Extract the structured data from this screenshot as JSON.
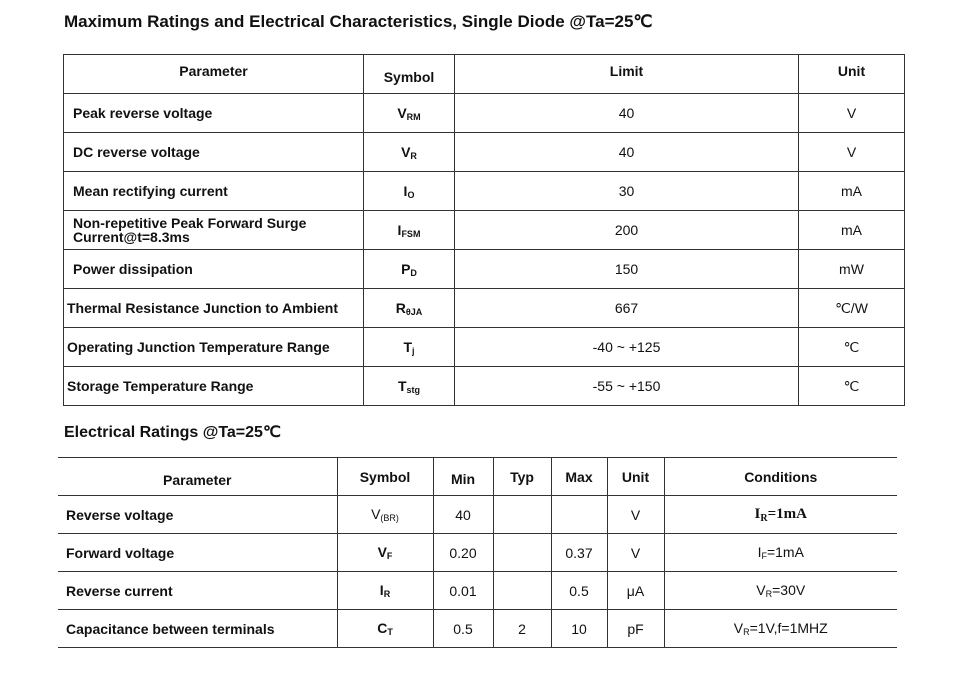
{
  "title_main": "Maximum Ratings and Electrical Characteristics, Single Diode @Ta=25℃",
  "max_table": {
    "headers": {
      "parameter": "Parameter",
      "symbol": "Symbol",
      "limit": "Limit",
      "unit": "Unit"
    },
    "rows": [
      {
        "parameter": "Peak reverse voltage",
        "symbol": "V",
        "symbol_sub": "RM",
        "limit": "40",
        "unit": "V"
      },
      {
        "parameter": "DC reverse voltage",
        "symbol": "V",
        "symbol_sub": "R",
        "limit": "40",
        "unit": "V"
      },
      {
        "parameter": "Mean rectifying current",
        "symbol": "I",
        "symbol_sub": "O",
        "limit": "30",
        "unit": "mA"
      },
      {
        "parameter": "Non-repetitive Peak Forward Surge",
        "parameter_line2": "Current@t=8.3ms",
        "symbol": "I",
        "symbol_sub": "FSM",
        "limit": "200",
        "unit": "mA"
      },
      {
        "parameter": "Power dissipation",
        "symbol": "P",
        "symbol_sub": "D",
        "limit": "150",
        "unit": "mW"
      },
      {
        "parameter": "Thermal Resistance Junction to Ambient",
        "symbol": "R",
        "symbol_sub": "θJA",
        "limit": "667",
        "unit": "℃/W"
      },
      {
        "parameter": "Operating Junction Temperature Range",
        "symbol": "T",
        "symbol_sub": "j",
        "limit": "-40 ~ +125",
        "unit": "℃"
      },
      {
        "parameter": "Storage Temperature Range",
        "symbol": "T",
        "symbol_sub": "stg",
        "limit": "-55 ~ +150",
        "unit": "℃"
      }
    ]
  },
  "title_elec": "Electrical Ratings @Ta=25℃",
  "elec_table": {
    "headers": {
      "parameter": "Parameter",
      "symbol": "Symbol",
      "min": "Min",
      "typ": "Typ",
      "max": "Max",
      "unit": "Unit",
      "conditions": "Conditions"
    },
    "rows": [
      {
        "parameter": "Reverse voltage",
        "symbol": "V",
        "symbol_sub": "(BR)",
        "min": "40",
        "typ": "",
        "max": "",
        "unit": "V",
        "cond": "I",
        "cond_sub": "R",
        "cond_rest": "=1mA"
      },
      {
        "parameter": "Forward voltage",
        "symbol": "V",
        "symbol_sub": "F",
        "min": "0.20",
        "typ": "",
        "max": "0.37",
        "unit": "V",
        "cond": "I",
        "cond_sub": "F",
        "cond_rest": "=1mA"
      },
      {
        "parameter": "Reverse current",
        "symbol": "I",
        "symbol_sub": "R",
        "min": "0.01",
        "typ": "",
        "max": "0.5",
        "unit": "μA",
        "cond": "V",
        "cond_sub": "R",
        "cond_rest": "=30V"
      },
      {
        "parameter": "Capacitance between terminals",
        "symbol": "C",
        "symbol_sub": "T",
        "min": "0.5",
        "typ": "2",
        "max": "10",
        "unit": "pF",
        "cond": "V",
        "cond_sub": "R",
        "cond_rest": "=1V,f=1MHZ"
      }
    ]
  }
}
